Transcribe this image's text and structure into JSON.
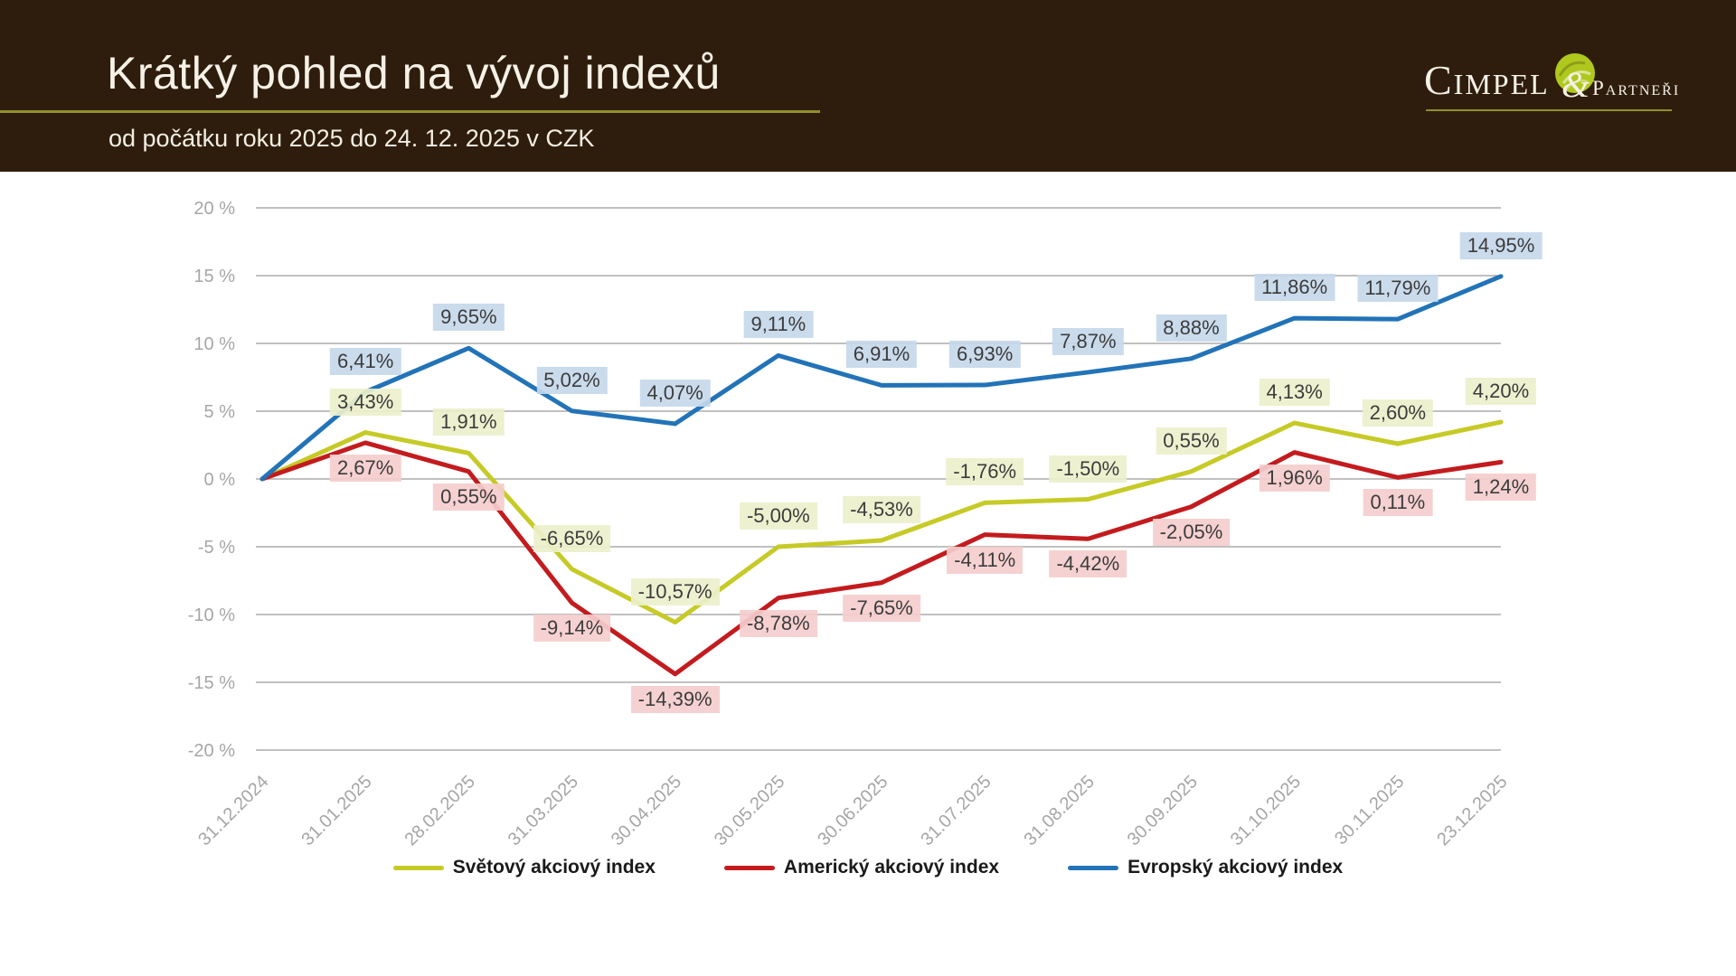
{
  "header": {
    "title": "Krátký pohled na vývoj indexů",
    "subtitle": "od počátku roku 2025 do 24. 12. 2025 v CZK",
    "background_color": "#2E1D0D",
    "accent_line_color": "#90902C",
    "logo": {
      "company_main": "Cimpel",
      "ampersand": "&",
      "company_sub": "Partneři",
      "blob_color": "#AFC81E"
    }
  },
  "chart_data": {
    "type": "line",
    "title": "",
    "grid": true,
    "legend_position": "bottom",
    "x_labels": [
      "31.12.2024",
      "31.01.2025",
      "28.02.2025",
      "31.03.2025",
      "30.04.2025",
      "30.05.2025",
      "30.06.2025",
      "31.07.2025",
      "31.08.2025",
      "30.09.2025",
      "31.10.2025",
      "30.11.2025",
      "23.12.2025"
    ],
    "y_axis": {
      "unit": "%",
      "min": -20,
      "max": 20,
      "step": 5,
      "tick_values": [
        20,
        15,
        10,
        5,
        0,
        -5,
        -10,
        -15,
        -20
      ],
      "tick_labels": [
        "20 %",
        "15 %",
        "10 %",
        "5 %",
        "0 %",
        "-5 %",
        "-10 %",
        "-15 %",
        "-20 %"
      ]
    },
    "series": [
      {
        "name": "Světový akciový index",
        "color": "#C6CA26",
        "label_bg": "rgba(236,240,203,0.92)",
        "label_side": "above",
        "values": [
          0,
          3.43,
          1.91,
          -6.65,
          -10.57,
          -5.0,
          -4.53,
          -1.76,
          -1.5,
          0.55,
          4.13,
          2.6,
          4.2
        ],
        "labels": [
          "",
          "3,43%",
          "1,91%",
          "-6,65%",
          "-10,57%",
          "-5,00%",
          "-4,53%",
          "-1,76%",
          "-1,50%",
          "0,55%",
          "4,13%",
          "2,60%",
          "4,20%"
        ]
      },
      {
        "name": "Americký akciový index",
        "color": "#C31B1E",
        "label_bg": "rgba(245,205,205,0.92)",
        "label_side": "below",
        "values": [
          0,
          2.67,
          0.55,
          -9.14,
          -14.39,
          -8.78,
          -7.65,
          -4.11,
          -4.42,
          -2.05,
          1.96,
          0.11,
          1.24
        ],
        "labels": [
          "",
          "2,67%",
          "0,55%",
          "-9,14%",
          "-14,39%",
          "-8,78%",
          "-7,65%",
          "-4,11%",
          "-4,42%",
          "-2,05%",
          "1,96%",
          "0,11%",
          "1,24%"
        ]
      },
      {
        "name": "Evropský akciový index",
        "color": "#2273B8",
        "label_bg": "rgba(197,216,234,0.92)",
        "label_side": "above",
        "values": [
          0,
          6.41,
          9.65,
          5.02,
          4.07,
          9.11,
          6.91,
          6.93,
          7.87,
          8.88,
          11.86,
          11.79,
          14.95
        ],
        "labels": [
          "",
          "6,41%",
          "9,65%",
          "5,02%",
          "4,07%",
          "9,11%",
          "6,91%",
          "6,93%",
          "7,87%",
          "8,88%",
          "11,86%",
          "11,79%",
          "14,95%"
        ]
      }
    ],
    "axis_text_color": "#A6A6A6",
    "grid_color": "#ABABAB"
  }
}
